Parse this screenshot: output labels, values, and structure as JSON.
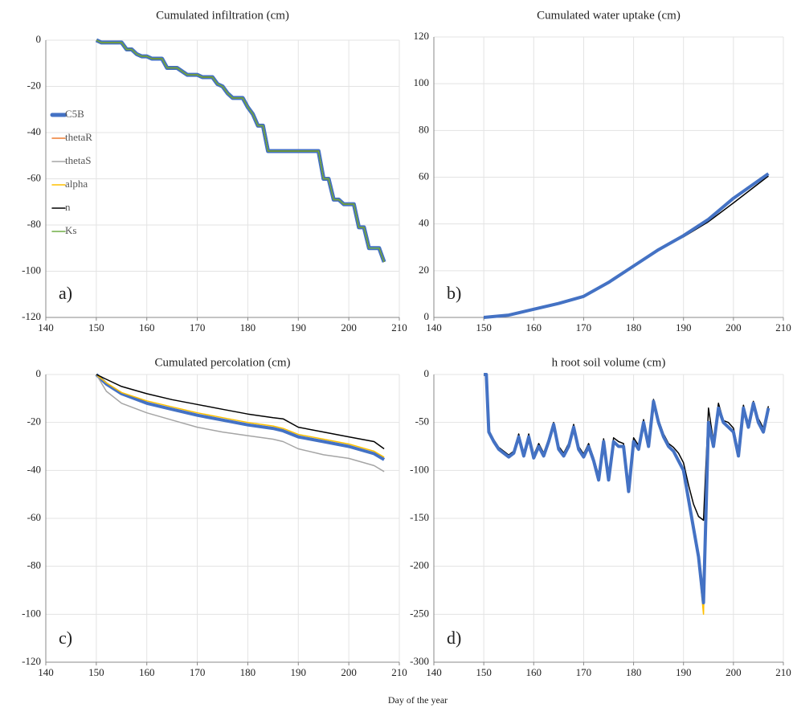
{
  "chart_data": [
    {
      "type": "line",
      "title": "Cumulated  infiltration  (cm)",
      "annotation": "a)",
      "x": [
        150,
        151,
        155,
        156,
        157,
        158,
        159,
        160,
        161,
        163,
        164,
        166,
        168,
        170,
        171,
        173,
        174,
        175,
        176,
        177,
        179,
        180,
        181,
        182,
        183,
        184,
        194,
        195,
        196,
        197,
        198,
        199,
        201,
        202,
        203,
        204,
        206,
        207
      ],
      "series": [
        {
          "name": "C5B",
          "color": "#4472c4",
          "width": 5,
          "values": [
            0,
            -1,
            -1,
            -4,
            -4,
            -6,
            -7,
            -7,
            -8,
            -8,
            -12,
            -12,
            -15,
            -15,
            -16,
            -16,
            -19,
            -20,
            -23,
            -25,
            -25,
            -29,
            -32,
            -37,
            -37,
            -48,
            -48,
            -60,
            -60,
            -69,
            -69,
            -71,
            -71,
            -81,
            -81,
            -90,
            -90,
            -96
          ]
        },
        {
          "name": "thetaR",
          "color": "#ed7d31",
          "width": 1.5,
          "values": [
            0,
            -1,
            -1,
            -4,
            -4,
            -6,
            -7,
            -7,
            -8,
            -8,
            -12,
            -12,
            -15,
            -15,
            -16,
            -16,
            -19,
            -20,
            -23,
            -25,
            -25,
            -29,
            -32,
            -37,
            -37,
            -48,
            -48,
            -60,
            -60,
            -69,
            -69,
            -71,
            -71,
            -81,
            -81,
            -90,
            -90,
            -96
          ]
        },
        {
          "name": "thetaS",
          "color": "#a5a5a5",
          "width": 1.5,
          "values": [
            0,
            -1,
            -1,
            -4,
            -4,
            -6,
            -7,
            -7,
            -8,
            -8,
            -12,
            -12,
            -15,
            -15,
            -16,
            -16,
            -19,
            -20,
            -23,
            -25,
            -25,
            -29,
            -32,
            -37,
            -37,
            -48,
            -48,
            -60,
            -60,
            -69,
            -69,
            -71,
            -71,
            -81,
            -81,
            -90,
            -90,
            -96
          ]
        },
        {
          "name": "alpha",
          "color": "#ffc000",
          "width": 1.5,
          "values": [
            0,
            -1,
            -1,
            -4,
            -4,
            -6,
            -7,
            -7,
            -8,
            -8,
            -12,
            -12,
            -15,
            -15,
            -16,
            -16,
            -19,
            -20,
            -23,
            -25,
            -25,
            -29,
            -32,
            -37,
            -37,
            -48,
            -48,
            -60,
            -60,
            -69,
            -69,
            -71,
            -71,
            -81,
            -81,
            -90,
            -90,
            -96
          ]
        },
        {
          "name": "n",
          "color": "#000000",
          "width": 1.5,
          "values": [
            0,
            -1,
            -1,
            -4,
            -4,
            -6,
            -7,
            -7,
            -8,
            -8,
            -12,
            -12,
            -15,
            -15,
            -16,
            -16,
            -19,
            -20,
            -23,
            -25,
            -25,
            -29,
            -32,
            -37,
            -37,
            -48,
            -48,
            -60,
            -60,
            -69,
            -69,
            -71,
            -71,
            -81,
            -81,
            -90,
            -90,
            -96
          ]
        },
        {
          "name": "Ks",
          "color": "#70ad47",
          "width": 1.5,
          "values": [
            0,
            -1,
            -1,
            -4,
            -4,
            -6,
            -7,
            -7,
            -8,
            -8,
            -12,
            -12,
            -15,
            -15,
            -16,
            -16,
            -19,
            -20,
            -23,
            -25,
            -25,
            -29,
            -32,
            -37,
            -37,
            -48,
            -48,
            -60,
            -60,
            -69,
            -69,
            -71,
            -71,
            -81,
            -81,
            -90,
            -90,
            -96
          ]
        }
      ],
      "xlim": [
        140,
        210
      ],
      "xticks": [
        140,
        150,
        160,
        170,
        180,
        190,
        200,
        210
      ],
      "ylim": [
        -120,
        0
      ],
      "yticks": [
        0,
        -20,
        -40,
        -60,
        -80,
        -100,
        -120
      ],
      "grid": true
    },
    {
      "type": "line",
      "title": "Cumulated  water  uptake  (cm)",
      "annotation": "b)",
      "x": [
        150,
        155,
        160,
        165,
        170,
        175,
        180,
        185,
        190,
        195,
        200,
        207
      ],
      "series": [
        {
          "color": "#000000",
          "width": 1.5,
          "values": [
            0,
            1,
            3.5,
            6,
            9,
            15,
            22,
            29,
            34.5,
            41,
            49,
            60.5
          ]
        },
        {
          "color": "#4472c4",
          "width": 4,
          "values": [
            0,
            1,
            3.5,
            6,
            9,
            15,
            22,
            29,
            35,
            42,
            51,
            61.5
          ]
        }
      ],
      "xlim": [
        140,
        210
      ],
      "xticks": [
        140,
        150,
        160,
        170,
        180,
        190,
        200,
        210
      ],
      "ylim": [
        0,
        120
      ],
      "yticks": [
        0,
        20,
        40,
        60,
        80,
        100,
        120
      ],
      "grid": true
    },
    {
      "type": "line",
      "title": "Cumulated  percolation  (cm)",
      "annotation": "c)",
      "x": [
        150,
        152,
        155,
        160,
        165,
        170,
        175,
        180,
        185,
        187,
        190,
        195,
        200,
        205,
        207
      ],
      "series": [
        {
          "color": "#4472c4",
          "width": 4,
          "values": [
            0,
            -4,
            -8,
            -12,
            -14.5,
            -17,
            -19,
            -21,
            -22.5,
            -23.5,
            -26,
            -28,
            -30,
            -33,
            -35.5
          ]
        },
        {
          "color": "#a5a5a5",
          "width": 1.5,
          "values": [
            0,
            -7,
            -12,
            -16,
            -19,
            -22,
            -24,
            -25.5,
            -27,
            -28,
            -31,
            -33.5,
            -35,
            -38,
            -40.5
          ]
        },
        {
          "color": "#ffc000",
          "width": 1.5,
          "values": [
            0,
            -3.5,
            -7.5,
            -11,
            -13.5,
            -16,
            -18,
            -20,
            -21.5,
            -22.5,
            -25,
            -27,
            -29,
            -32,
            -34.5
          ]
        },
        {
          "color": "#000000",
          "width": 1.5,
          "values": [
            0,
            -2,
            -5,
            -8,
            -10.5,
            -12.5,
            -14.5,
            -16.5,
            -18,
            -18.5,
            -22,
            -24,
            -26,
            -28,
            -31
          ]
        }
      ],
      "xlim": [
        140,
        210
      ],
      "xticks": [
        140,
        150,
        160,
        170,
        180,
        190,
        200,
        210
      ],
      "ylim": [
        -120,
        0
      ],
      "yticks": [
        0,
        -20,
        -40,
        -60,
        -80,
        -100,
        -120
      ],
      "grid": true
    },
    {
      "type": "line",
      "title": "h root soil volume (cm)",
      "annotation": "d)",
      "x": [
        150,
        150.5,
        151,
        152,
        153,
        154,
        155,
        156,
        157,
        158,
        159,
        160,
        161,
        162,
        163,
        164,
        165,
        166,
        167,
        168,
        169,
        170,
        171,
        172,
        173,
        174,
        175,
        176,
        177,
        178,
        179,
        180,
        181,
        182,
        183,
        184,
        185,
        186,
        187,
        188,
        189,
        190,
        191,
        192,
        193,
        194,
        195,
        196,
        197,
        198,
        199,
        200,
        201,
        202,
        203,
        204,
        205,
        206,
        207
      ],
      "series": [
        {
          "color": "#000000",
          "width": 1.5,
          "values": [
            0,
            0,
            -58,
            -68,
            -76,
            -80,
            -84,
            -80,
            -62,
            -82,
            -62,
            -84,
            -72,
            -82,
            -67,
            -50,
            -75,
            -82,
            -72,
            -52,
            -75,
            -83,
            -72,
            -87,
            -105,
            -67,
            -105,
            -66,
            -70,
            -72,
            -118,
            -66,
            -74,
            -47,
            -72,
            -26,
            -47,
            -62,
            -72,
            -76,
            -82,
            -92,
            -115,
            -135,
            -148,
            -152,
            -35,
            -70,
            -30,
            -48,
            -50,
            -56,
            -80,
            -32,
            -52,
            -28,
            -46,
            -56,
            -33
          ]
        },
        {
          "color": "#ffc000",
          "width": 1.5,
          "values": [
            0,
            0,
            -60,
            -70,
            -78,
            -82,
            -86,
            -82,
            -65,
            -85,
            -65,
            -87,
            -75,
            -85,
            -70,
            -52,
            -78,
            -85,
            -75,
            -55,
            -78,
            -86,
            -75,
            -90,
            -110,
            -70,
            -110,
            -72,
            -75,
            -75,
            -122,
            -72,
            -78,
            -50,
            -75,
            -28,
            -50,
            -65,
            -75,
            -80,
            -90,
            -100,
            -130,
            -162,
            -195,
            -250,
            -52,
            -75,
            -35,
            -50,
            -55,
            -60,
            -85,
            -35,
            -55,
            -30,
            -50,
            -60,
            -35
          ]
        },
        {
          "color": "#4472c4",
          "width": 4,
          "values": [
            0,
            0,
            -60,
            -70,
            -78,
            -82,
            -86,
            -82,
            -65,
            -85,
            -65,
            -87,
            -75,
            -85,
            -70,
            -52,
            -78,
            -85,
            -75,
            -55,
            -78,
            -86,
            -75,
            -90,
            -110,
            -70,
            -110,
            -70,
            -75,
            -75,
            -122,
            -70,
            -78,
            -50,
            -75,
            -28,
            -50,
            -65,
            -75,
            -80,
            -90,
            -100,
            -130,
            -160,
            -190,
            -238,
            -50,
            -75,
            -35,
            -50,
            -55,
            -60,
            -85,
            -35,
            -55,
            -30,
            -50,
            -60,
            -35
          ]
        }
      ],
      "xlim": [
        140,
        210
      ],
      "xticks": [
        140,
        150,
        160,
        170,
        180,
        190,
        200,
        210
      ],
      "ylim": [
        -300,
        0
      ],
      "yticks": [
        0,
        -50,
        -100,
        -150,
        -200,
        -250,
        -300
      ],
      "grid": true
    }
  ],
  "xlabel": "Day of the year"
}
